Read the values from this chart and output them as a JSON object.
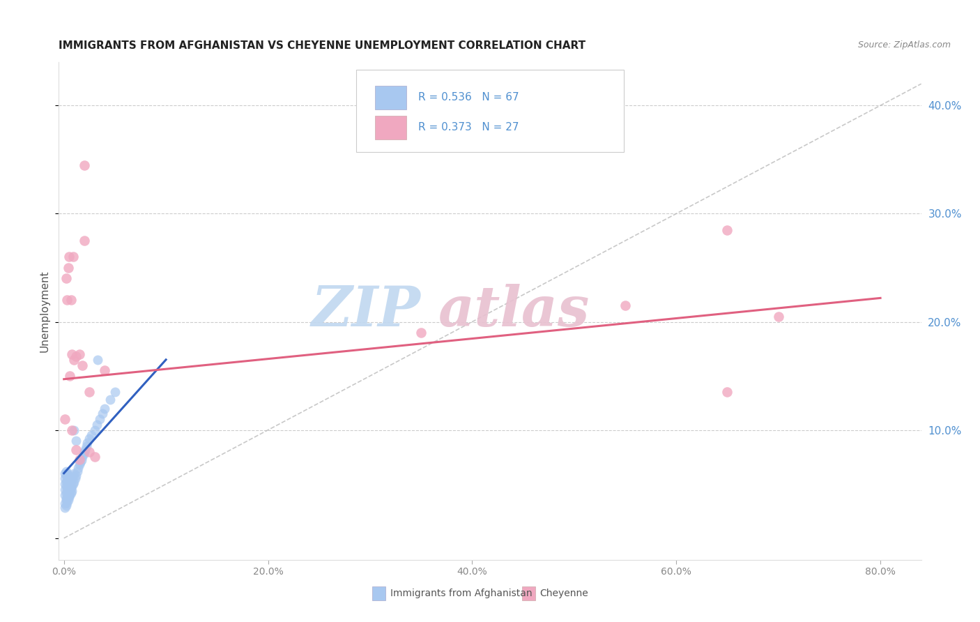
{
  "title": "IMMIGRANTS FROM AFGHANISTAN VS CHEYENNE UNEMPLOYMENT CORRELATION CHART",
  "source": "Source: ZipAtlas.com",
  "xlabel_vals": [
    0.0,
    0.2,
    0.4,
    0.6,
    0.8
  ],
  "ylabel_vals": [
    0.1,
    0.2,
    0.3,
    0.4
  ],
  "xlim": [
    -0.005,
    0.84
  ],
  "ylim": [
    -0.02,
    0.44
  ],
  "ylabel": "Unemployment",
  "legend_label1": "Immigrants from Afghanistan",
  "legend_label2": "Cheyenne",
  "R1": "0.536",
  "N1": "67",
  "R2": "0.373",
  "N2": "27",
  "blue_color": "#a8c8f0",
  "pink_color": "#f0a8c0",
  "blue_line_color": "#3060c0",
  "pink_line_color": "#e06080",
  "axis_tick_color": "#888888",
  "axis_label_color": "#5090d0",
  "watermark_zip_color": "#c0d8f0",
  "watermark_atlas_color": "#e8c0d0",
  "blue_line_x": [
    0.0,
    0.1
  ],
  "blue_line_y": [
    0.06,
    0.165
  ],
  "pink_line_x": [
    0.0,
    0.8
  ],
  "pink_line_y": [
    0.147,
    0.222
  ],
  "diag_line_x": [
    0.0,
    0.84
  ],
  "diag_line_y": [
    0.0,
    0.42
  ],
  "background_color": "#ffffff",
  "grid_color": "#cccccc",
  "blue_scatter_x": [
    0.001,
    0.001,
    0.001,
    0.001,
    0.001,
    0.002,
    0.002,
    0.002,
    0.002,
    0.002,
    0.002,
    0.003,
    0.003,
    0.003,
    0.003,
    0.004,
    0.004,
    0.004,
    0.005,
    0.005,
    0.005,
    0.006,
    0.006,
    0.007,
    0.007,
    0.008,
    0.008,
    0.009,
    0.009,
    0.01,
    0.01,
    0.011,
    0.012,
    0.013,
    0.014,
    0.015,
    0.016,
    0.017,
    0.018,
    0.019,
    0.02,
    0.021,
    0.022,
    0.023,
    0.025,
    0.027,
    0.03,
    0.032,
    0.035,
    0.038,
    0.04,
    0.045,
    0.05,
    0.001,
    0.001,
    0.002,
    0.002,
    0.003,
    0.003,
    0.004,
    0.005,
    0.006,
    0.007,
    0.008,
    0.033,
    0.01,
    0.012
  ],
  "blue_scatter_y": [
    0.04,
    0.045,
    0.05,
    0.055,
    0.06,
    0.035,
    0.042,
    0.048,
    0.052,
    0.058,
    0.062,
    0.038,
    0.045,
    0.053,
    0.06,
    0.042,
    0.05,
    0.058,
    0.04,
    0.048,
    0.056,
    0.044,
    0.052,
    0.046,
    0.054,
    0.048,
    0.056,
    0.05,
    0.058,
    0.052,
    0.06,
    0.055,
    0.058,
    0.062,
    0.065,
    0.068,
    0.07,
    0.072,
    0.075,
    0.078,
    0.08,
    0.082,
    0.085,
    0.088,
    0.092,
    0.095,
    0.1,
    0.105,
    0.11,
    0.115,
    0.12,
    0.128,
    0.135,
    0.028,
    0.032,
    0.03,
    0.036,
    0.033,
    0.038,
    0.035,
    0.038,
    0.04,
    0.042,
    0.044,
    0.165,
    0.1,
    0.09
  ],
  "pink_scatter_x": [
    0.001,
    0.002,
    0.003,
    0.004,
    0.005,
    0.006,
    0.007,
    0.008,
    0.009,
    0.01,
    0.012,
    0.015,
    0.018,
    0.02,
    0.025,
    0.03,
    0.04,
    0.35,
    0.55,
    0.65,
    0.7,
    0.65,
    0.02,
    0.025,
    0.015,
    0.012,
    0.008
  ],
  "pink_scatter_y": [
    0.11,
    0.24,
    0.22,
    0.25,
    0.26,
    0.15,
    0.22,
    0.17,
    0.26,
    0.165,
    0.168,
    0.17,
    0.16,
    0.275,
    0.135,
    0.075,
    0.155,
    0.19,
    0.215,
    0.285,
    0.205,
    0.135,
    0.345,
    0.08,
    0.073,
    0.082,
    0.1
  ]
}
